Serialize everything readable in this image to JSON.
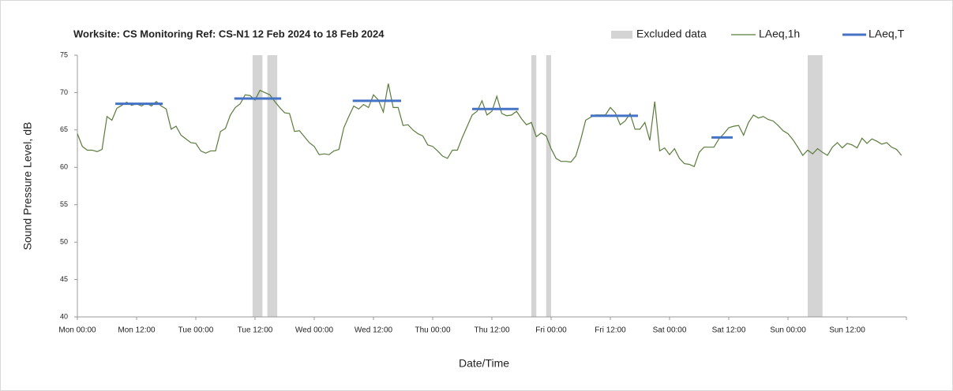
{
  "chart_data": {
    "type": "line",
    "title": "Worksite: CS   Monitoring Ref: CS-N1     12 Feb 2024 to 18 Feb 2024",
    "x_label": "Date/Time",
    "y_label": "Sound Pressure Level, dB",
    "legend": "top-right",
    "grid": false,
    "xlim": [
      0,
      168
    ],
    "xticks": [
      {
        "value": 0,
        "label": "Mon 00:00"
      },
      {
        "value": 12,
        "label": "Mon 12:00"
      },
      {
        "value": 24,
        "label": "Tue 00:00"
      },
      {
        "value": 36,
        "label": "Tue 12:00"
      },
      {
        "value": 48,
        "label": "Wed 00:00"
      },
      {
        "value": 60,
        "label": "Wed 12:00"
      },
      {
        "value": 72,
        "label": "Thu 00:00"
      },
      {
        "value": 84,
        "label": "Thu 12:00"
      },
      {
        "value": 96,
        "label": "Fri 00:00"
      },
      {
        "value": 108,
        "label": "Fri 12:00"
      },
      {
        "value": 120,
        "label": "Sat 00:00"
      },
      {
        "value": 132,
        "label": "Sat 12:00"
      },
      {
        "value": 144,
        "label": "Sun 00:00"
      },
      {
        "value": 156,
        "label": "Sun 12:00"
      }
    ],
    "ylim": [
      40,
      75
    ],
    "yticks": [
      40,
      45,
      50,
      55,
      60,
      65,
      70,
      75
    ],
    "excluded": {
      "name": "Excluded data",
      "color": "#d4d4d4",
      "ranges": [
        [
          35.5,
          37.5
        ],
        [
          38.5,
          40.5
        ],
        [
          92,
          93
        ],
        [
          95,
          96
        ],
        [
          148,
          151
        ]
      ]
    },
    "x": [
      0,
      1,
      2,
      3,
      4,
      5,
      6,
      7,
      8,
      9,
      10,
      11,
      12,
      13,
      14,
      15,
      16,
      17,
      18,
      19,
      20,
      21,
      22,
      23,
      24,
      25,
      26,
      27,
      28,
      29,
      30,
      31,
      32,
      33,
      34,
      35,
      36,
      37,
      38,
      39,
      40,
      41,
      42,
      43,
      44,
      45,
      46,
      47,
      48,
      49,
      50,
      51,
      52,
      53,
      54,
      55,
      56,
      57,
      58,
      59,
      60,
      61,
      62,
      63,
      64,
      65,
      66,
      67,
      68,
      69,
      70,
      71,
      72,
      73,
      74,
      75,
      76,
      77,
      78,
      79,
      80,
      81,
      82,
      83,
      84,
      85,
      86,
      87,
      88,
      89,
      90,
      91,
      92,
      93,
      94,
      95,
      96,
      97,
      98,
      99,
      100,
      101,
      102,
      103,
      104,
      105,
      106,
      107,
      108,
      109,
      110,
      111,
      112,
      113,
      114,
      115,
      116,
      117,
      118,
      119,
      120,
      121,
      122,
      123,
      124,
      125,
      126,
      127,
      128,
      129,
      130,
      131,
      132,
      133,
      134,
      135,
      136,
      137,
      138,
      139,
      140,
      141,
      142,
      143,
      144,
      145,
      146,
      147,
      148,
      149,
      150,
      151,
      152,
      153,
      154,
      155,
      156,
      157,
      158,
      159,
      160,
      161,
      162,
      163,
      164,
      165,
      166,
      167
    ],
    "series": [
      {
        "name": "LAeq,1h",
        "color": "#5b7b3c",
        "values": [
          64.5,
          62.8,
          62.3,
          62.3,
          62.1,
          62.4,
          66.8,
          66.3,
          67.9,
          68.3,
          68.7,
          68.3,
          68.5,
          68.2,
          68.6,
          68.2,
          68.8,
          68.2,
          67.8,
          65.1,
          65.5,
          64.3,
          63.8,
          63.3,
          63.2,
          62.2,
          61.9,
          62.2,
          62.2,
          64.8,
          65.2,
          67.0,
          68.0,
          68.5,
          69.7,
          69.6,
          69.0,
          70.3,
          70.0,
          69.7,
          68.8,
          68.0,
          67.3,
          67.2,
          64.8,
          64.9,
          64.1,
          63.3,
          62.8,
          61.7,
          61.8,
          61.7,
          62.2,
          62.4,
          65.3,
          66.8,
          68.2,
          67.8,
          68.4,
          68.0,
          69.7,
          69.0,
          67.4,
          71.2,
          68.0,
          68.0,
          65.6,
          65.7,
          65.0,
          64.5,
          64.2,
          63.0,
          62.8,
          62.2,
          61.5,
          61.2,
          62.3,
          62.3,
          64.0,
          65.5,
          67.0,
          67.5,
          68.9,
          67.0,
          67.5,
          69.5,
          67.2,
          66.9,
          67.0,
          67.5,
          66.5,
          65.7,
          66.0,
          64.1,
          64.6,
          64.2,
          62.5,
          61.2,
          60.8,
          60.8,
          60.7,
          61.5,
          63.7,
          66.3,
          66.7,
          67.0,
          67.0,
          67.0,
          68.0,
          67.3,
          65.7,
          66.2,
          67.2,
          65.1,
          65.1,
          66.0,
          63.6,
          68.8,
          62.2,
          62.6,
          61.7,
          62.5,
          61.2,
          60.5,
          60.4,
          60.1,
          62.0,
          62.7,
          62.7,
          62.7,
          63.8,
          64.5,
          65.3,
          65.5,
          65.6,
          64.3,
          66.0,
          67.0,
          66.6,
          66.8,
          66.4,
          66.2,
          65.6,
          64.9,
          64.5,
          63.7,
          62.7,
          61.6,
          62.3,
          61.8,
          62.5,
          62.0,
          61.6,
          62.7,
          63.3,
          62.6,
          63.2,
          63.0,
          62.6,
          63.9,
          63.2,
          63.8,
          63.5,
          63.1,
          63.3,
          62.7,
          62.4,
          61.6
        ]
      }
    ],
    "laeq_t": {
      "name": "LAeq,T",
      "color": "#4472c4",
      "x_ranges": [
        [
          7.7,
          17.3
        ],
        [
          31.8,
          41.3
        ],
        [
          55.8,
          65.6
        ],
        [
          80,
          89.4
        ],
        [
          104,
          113.6
        ],
        [
          128.5,
          132.8
        ]
      ],
      "values": [
        68.5,
        69.2,
        68.9,
        67.8,
        66.9,
        64.0
      ]
    }
  }
}
